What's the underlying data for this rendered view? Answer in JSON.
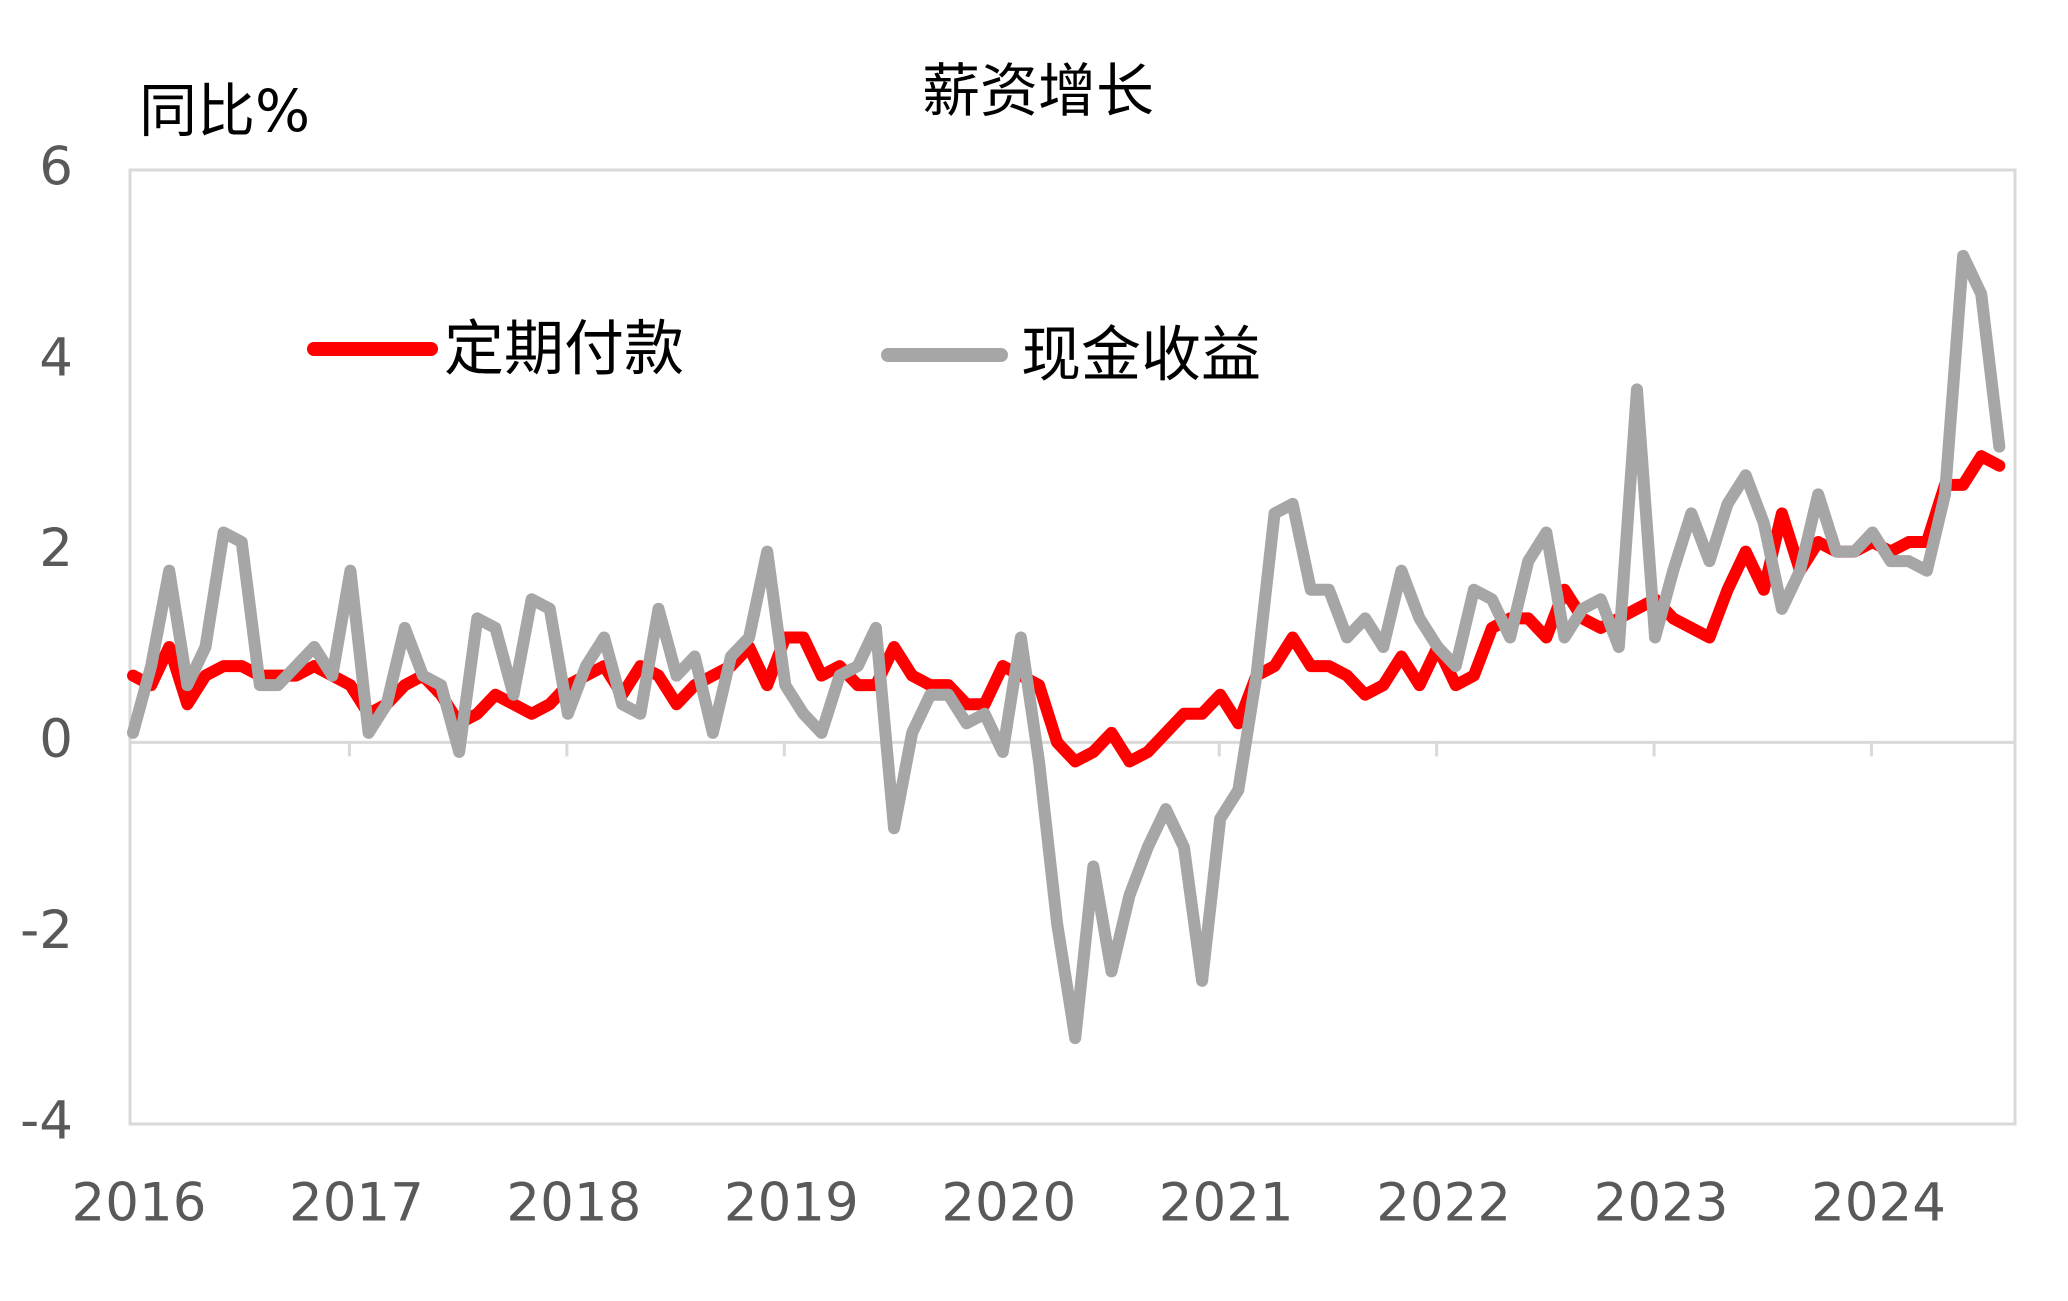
{
  "chart_data": {
    "type": "line",
    "title": "薪资增长",
    "y_label": "同比%",
    "categories": [
      "2016",
      null,
      null,
      null,
      null,
      null,
      null,
      null,
      null,
      null,
      null,
      null,
      "2017",
      null,
      null,
      null,
      null,
      null,
      null,
      null,
      null,
      null,
      null,
      null,
      "2018",
      null,
      null,
      null,
      null,
      null,
      null,
      null,
      null,
      null,
      null,
      null,
      "2019",
      null,
      null,
      null,
      null,
      null,
      null,
      null,
      null,
      null,
      null,
      null,
      "2020",
      null,
      null,
      null,
      null,
      null,
      null,
      null,
      null,
      null,
      null,
      null,
      "2021",
      null,
      null,
      null,
      null,
      null,
      null,
      null,
      null,
      null,
      null,
      null,
      "2022",
      null,
      null,
      null,
      null,
      null,
      null,
      null,
      null,
      null,
      null,
      null,
      "2023",
      null,
      null,
      null,
      null,
      null,
      null,
      null,
      null,
      null,
      null,
      null,
      "2024",
      null,
      null,
      null,
      null,
      null,
      null,
      null
    ],
    "series": [
      {
        "name": "定期付款",
        "color": "#ff0000",
        "values": [
          0.7,
          0.6,
          1.0,
          0.4,
          0.7,
          0.8,
          0.8,
          0.7,
          0.7,
          0.7,
          0.8,
          0.7,
          0.6,
          0.3,
          0.4,
          0.6,
          0.7,
          0.5,
          0.2,
          0.3,
          0.5,
          0.4,
          0.3,
          0.4,
          0.6,
          0.7,
          0.8,
          0.5,
          0.8,
          0.7,
          0.4,
          0.6,
          0.7,
          0.8,
          1.0,
          0.6,
          1.1,
          1.1,
          0.7,
          0.8,
          0.6,
          0.6,
          1.0,
          0.7,
          0.6,
          0.6,
          0.4,
          0.4,
          0.8,
          0.7,
          0.6,
          0.0,
          -0.2,
          -0.1,
          0.1,
          -0.2,
          -0.1,
          0.1,
          0.3,
          0.3,
          0.5,
          0.2,
          0.7,
          0.8,
          1.1,
          0.8,
          0.8,
          0.7,
          0.5,
          0.6,
          0.9,
          0.6,
          1.0,
          0.6,
          0.7,
          1.2,
          1.3,
          1.3,
          1.1,
          1.6,
          1.3,
          1.2,
          1.3,
          1.4,
          1.5,
          1.3,
          1.2,
          1.1,
          1.6,
          2.0,
          1.6,
          2.4,
          1.8,
          2.1,
          2.0,
          2.0,
          2.1,
          2.0,
          2.1,
          2.1,
          2.7,
          2.7,
          3.0,
          2.9
        ]
      },
      {
        "name": "现金收益",
        "color": "#a6a6a6",
        "values": [
          0.1,
          0.8,
          1.8,
          0.6,
          1.0,
          2.2,
          2.1,
          0.6,
          0.6,
          0.8,
          1.0,
          0.7,
          1.8,
          0.1,
          0.4,
          1.2,
          0.7,
          0.6,
          -0.1,
          1.3,
          1.2,
          0.5,
          1.5,
          1.4,
          0.3,
          0.8,
          1.1,
          0.4,
          0.3,
          1.4,
          0.7,
          0.9,
          0.1,
          0.9,
          1.1,
          2.0,
          0.6,
          0.3,
          0.1,
          0.7,
          0.8,
          1.2,
          -0.9,
          0.1,
          0.5,
          0.5,
          0.2,
          0.3,
          -0.1,
          1.1,
          -0.2,
          -1.9,
          -3.1,
          -1.3,
          -2.4,
          -1.6,
          -1.1,
          -0.7,
          -1.1,
          -2.5,
          -0.8,
          -0.5,
          0.7,
          2.4,
          2.5,
          1.6,
          1.6,
          1.1,
          1.3,
          1.0,
          1.8,
          1.3,
          1.0,
          0.8,
          1.6,
          1.5,
          1.1,
          1.9,
          2.2,
          1.1,
          1.4,
          1.5,
          1.0,
          3.7,
          1.1,
          1.8,
          2.4,
          1.9,
          2.5,
          2.8,
          2.3,
          1.4,
          1.8,
          2.6,
          2.0,
          2.0,
          2.2,
          1.9,
          1.9,
          1.8,
          2.6,
          5.1,
          4.7,
          3.1
        ]
      }
    ],
    "ylim": [
      -4,
      6
    ],
    "yticks": [
      -4,
      -2,
      0,
      2,
      4,
      6
    ],
    "grid": false,
    "legend": "upper left"
  }
}
